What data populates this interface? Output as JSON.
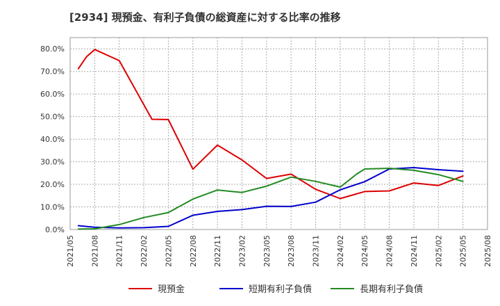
{
  "chart_data": {
    "type": "line",
    "title": "[2934]  現預金、有利子負債の総資産に対する比率の推移",
    "xlabel": "",
    "ylabel": "",
    "ylim": [
      0,
      0.85
    ],
    "y_ticks": [
      0,
      0.1,
      0.2,
      0.3,
      0.4,
      0.5,
      0.6,
      0.7,
      0.8
    ],
    "y_tick_labels": [
      "0.0%",
      "10.0%",
      "20.0%",
      "30.0%",
      "40.0%",
      "50.0%",
      "60.0%",
      "70.0%",
      "80.0%"
    ],
    "x_ticks": [
      "2021/05",
      "2021/08",
      "2021/11",
      "2022/02",
      "2022/05",
      "2022/08",
      "2022/11",
      "2023/02",
      "2023/05",
      "2023/08",
      "2023/11",
      "2024/02",
      "2024/05",
      "2024/08",
      "2024/11",
      "2025/02",
      "2025/05",
      "2025/08"
    ],
    "grid": true,
    "legend_position": "bottom",
    "series": [
      {
        "name": "現預金",
        "color": "#dd0000",
        "points": [
          [
            "2021/06",
            0.712
          ],
          [
            "2021/07",
            0.765
          ],
          [
            "2021/08",
            0.797
          ],
          [
            "2021/11",
            0.748
          ],
          [
            "2022/03",
            0.488
          ],
          [
            "2022/05",
            0.487
          ],
          [
            "2022/08",
            0.267
          ],
          [
            "2022/11",
            0.374
          ],
          [
            "2023/02",
            0.308
          ],
          [
            "2023/05",
            0.226
          ],
          [
            "2023/08",
            0.245
          ],
          [
            "2023/11",
            0.178
          ],
          [
            "2024/02",
            0.137
          ],
          [
            "2024/05",
            0.168
          ],
          [
            "2024/08",
            0.171
          ],
          [
            "2024/11",
            0.206
          ],
          [
            "2025/02",
            0.195
          ],
          [
            "2025/05",
            0.237
          ]
        ]
      },
      {
        "name": "短期有利子負債",
        "color": "#0000cc",
        "points": [
          [
            "2021/06",
            0.017
          ],
          [
            "2021/08",
            0.01
          ],
          [
            "2021/11",
            0.007
          ],
          [
            "2022/02",
            0.008
          ],
          [
            "2022/05",
            0.014
          ],
          [
            "2022/08",
            0.063
          ],
          [
            "2022/11",
            0.08
          ],
          [
            "2023/02",
            0.088
          ],
          [
            "2023/05",
            0.103
          ],
          [
            "2023/08",
            0.102
          ],
          [
            "2023/11",
            0.121
          ],
          [
            "2024/02",
            0.176
          ],
          [
            "2024/05",
            0.212
          ],
          [
            "2024/08",
            0.268
          ],
          [
            "2024/11",
            0.274
          ],
          [
            "2025/02",
            0.265
          ],
          [
            "2025/05",
            0.258
          ]
        ]
      },
      {
        "name": "長期有利子負債",
        "color": "#228b22",
        "points": [
          [
            "2021/06",
            0.002
          ],
          [
            "2021/08",
            0.003
          ],
          [
            "2021/11",
            0.022
          ],
          [
            "2022/02",
            0.053
          ],
          [
            "2022/05",
            0.075
          ],
          [
            "2022/08",
            0.135
          ],
          [
            "2022/11",
            0.175
          ],
          [
            "2023/02",
            0.164
          ],
          [
            "2023/05",
            0.192
          ],
          [
            "2023/08",
            0.232
          ],
          [
            "2023/11",
            0.213
          ],
          [
            "2024/02",
            0.188
          ],
          [
            "2024/04",
            0.245
          ],
          [
            "2024/05",
            0.268
          ],
          [
            "2024/08",
            0.271
          ],
          [
            "2024/11",
            0.262
          ],
          [
            "2025/02",
            0.243
          ],
          [
            "2025/05",
            0.213
          ]
        ]
      }
    ]
  }
}
